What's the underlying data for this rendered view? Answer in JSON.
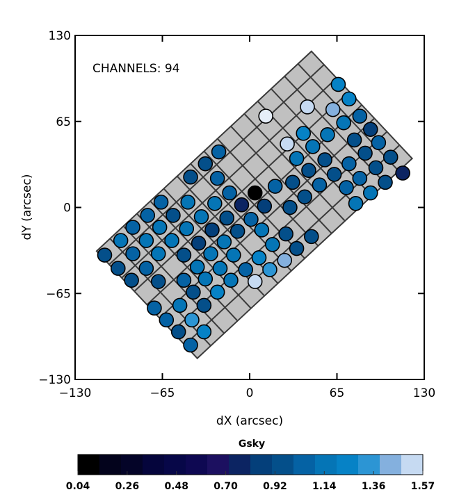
{
  "chart_data": {
    "type": "scatter",
    "annotation": "CHANNELS: 94",
    "xlabel": "dX (arcsec)",
    "ylabel": "dY (arcsec)",
    "xlim": [
      -130,
      130
    ],
    "ylim": [
      -130,
      130
    ],
    "xticks": [
      "-130",
      "-65",
      "0",
      "65",
      "130"
    ],
    "yticks": [
      "-130",
      "-65",
      "0",
      "65",
      "130"
    ],
    "xtick_values": [
      -130,
      -65,
      0,
      65,
      130
    ],
    "ytick_values": [
      -130,
      -65,
      0,
      65,
      130
    ],
    "footprint": {
      "corners": [
        [
          46,
          118
        ],
        [
          121,
          37
        ],
        [
          -39,
          -114
        ],
        [
          -114,
          -33
        ]
      ],
      "cells_long": 16,
      "cells_short": 8,
      "fill": "#c0c0c0",
      "line": "#3a3a3a"
    },
    "colorbar": {
      "title": "Gsky",
      "range": [
        0.04,
        1.57
      ],
      "tick_labels": [
        "0.04",
        "0.26",
        "0.48",
        "0.70",
        "0.92",
        "1.14",
        "1.36",
        "1.57"
      ],
      "colors": [
        "#000000",
        "#03031c",
        "#040428",
        "#05053c",
        "#070748",
        "#0e0852",
        "#1c1060",
        "#0c2462",
        "#043f7a",
        "#044f8a",
        "#0562a4",
        "#0575b6",
        "#0682c6",
        "#2c95d4",
        "#84b0de",
        "#c6daf2"
      ]
    },
    "points": [
      {
        "x": 66,
        "y": 93,
        "v": 1.23
      },
      {
        "x": 74,
        "y": 82,
        "v": 1.23
      },
      {
        "x": 43,
        "y": 76,
        "v": 1.52
      },
      {
        "x": 62,
        "y": 74,
        "v": 1.42
      },
      {
        "x": 12,
        "y": 69,
        "v": 1.57
      },
      {
        "x": 82,
        "y": 69,
        "v": 1.04
      },
      {
        "x": 70,
        "y": 64,
        "v": 1.14
      },
      {
        "x": 90,
        "y": 59,
        "v": 0.85
      },
      {
        "x": 40,
        "y": 56,
        "v": 1.23
      },
      {
        "x": 58,
        "y": 55,
        "v": 1.14
      },
      {
        "x": 78,
        "y": 51,
        "v": 0.95
      },
      {
        "x": 28,
        "y": 48,
        "v": 1.52
      },
      {
        "x": 47,
        "y": 46,
        "v": 1.14
      },
      {
        "x": 96,
        "y": 49,
        "v": 1.04
      },
      {
        "x": -23,
        "y": 42,
        "v": 1.04
      },
      {
        "x": 86,
        "y": 41,
        "v": 0.95
      },
      {
        "x": 35,
        "y": 37,
        "v": 1.14
      },
      {
        "x": 56,
        "y": 36,
        "v": 0.95
      },
      {
        "x": 105,
        "y": 38,
        "v": 0.95
      },
      {
        "x": -33,
        "y": 33,
        "v": 0.95
      },
      {
        "x": 74,
        "y": 33,
        "v": 1.04
      },
      {
        "x": 44,
        "y": 28,
        "v": 0.95
      },
      {
        "x": 63,
        "y": 25,
        "v": 0.95
      },
      {
        "x": 94,
        "y": 30,
        "v": 0.95
      },
      {
        "x": 114,
        "y": 26,
        "v": 0.76
      },
      {
        "x": -44,
        "y": 23,
        "v": 0.95
      },
      {
        "x": -24,
        "y": 22,
        "v": 1.04
      },
      {
        "x": 82,
        "y": 22,
        "v": 1.04
      },
      {
        "x": 32,
        "y": 19,
        "v": 0.95
      },
      {
        "x": 19,
        "y": 16,
        "v": 1.04
      },
      {
        "x": 52,
        "y": 17,
        "v": 1.04
      },
      {
        "x": -15,
        "y": 11,
        "v": 1.04
      },
      {
        "x": 4,
        "y": 11,
        "v": 0.04
      },
      {
        "x": 101,
        "y": 19,
        "v": 0.95
      },
      {
        "x": 72,
        "y": 15,
        "v": 1.04
      },
      {
        "x": 90,
        "y": 11,
        "v": 1.14
      },
      {
        "x": 41,
        "y": 8,
        "v": 0.95
      },
      {
        "x": -66,
        "y": 4,
        "v": 1.04
      },
      {
        "x": -46,
        "y": 4,
        "v": 1.14
      },
      {
        "x": -26,
        "y": 3,
        "v": 1.14
      },
      {
        "x": -6,
        "y": 2,
        "v": 0.76
      },
      {
        "x": 11,
        "y": 1,
        "v": 0.85
      },
      {
        "x": 30,
        "y": 0,
        "v": 0.95
      },
      {
        "x": 79,
        "y": 3,
        "v": 1.14
      },
      {
        "x": -76,
        "y": -6,
        "v": 1.04
      },
      {
        "x": -57,
        "y": -6,
        "v": 0.95
      },
      {
        "x": -36,
        "y": -7,
        "v": 1.14
      },
      {
        "x": -17,
        "y": -8,
        "v": 0.95
      },
      {
        "x": 1,
        "y": -9,
        "v": 1.04
      },
      {
        "x": -87,
        "y": -15,
        "v": 1.04
      },
      {
        "x": -67,
        "y": -15,
        "v": 1.14
      },
      {
        "x": -47,
        "y": -16,
        "v": 1.14
      },
      {
        "x": -28,
        "y": -17,
        "v": 0.85
      },
      {
        "x": -9,
        "y": -18,
        "v": 0.95
      },
      {
        "x": 9,
        "y": -17,
        "v": 1.14
      },
      {
        "x": 27,
        "y": -20,
        "v": 0.95
      },
      {
        "x": 46,
        "y": -22,
        "v": 0.95
      },
      {
        "x": -96,
        "y": -25,
        "v": 1.14
      },
      {
        "x": -77,
        "y": -25,
        "v": 1.14
      },
      {
        "x": -58,
        "y": -25,
        "v": 1.14
      },
      {
        "x": -38,
        "y": -27,
        "v": 0.85
      },
      {
        "x": -19,
        "y": -26,
        "v": 1.14
      },
      {
        "x": 17,
        "y": -28,
        "v": 1.14
      },
      {
        "x": -108,
        "y": -36,
        "v": 0.95
      },
      {
        "x": -87,
        "y": -35,
        "v": 1.04
      },
      {
        "x": -68,
        "y": -35,
        "v": 1.14
      },
      {
        "x": -49,
        "y": -36,
        "v": 0.95
      },
      {
        "x": -29,
        "y": -35,
        "v": 1.14
      },
      {
        "x": -12,
        "y": -36,
        "v": 1.14
      },
      {
        "x": 7,
        "y": -38,
        "v": 1.23
      },
      {
        "x": 35,
        "y": -31,
        "v": 0.95
      },
      {
        "x": 26,
        "y": -40,
        "v": 1.42
      },
      {
        "x": -98,
        "y": -46,
        "v": 0.95
      },
      {
        "x": -77,
        "y": -46,
        "v": 1.04
      },
      {
        "x": -39,
        "y": -45,
        "v": 1.14
      },
      {
        "x": -22,
        "y": -46,
        "v": 1.14
      },
      {
        "x": -3,
        "y": -47,
        "v": 1.04
      },
      {
        "x": 15,
        "y": -47,
        "v": 1.33
      },
      {
        "x": -88,
        "y": -55,
        "v": 0.95
      },
      {
        "x": -68,
        "y": -56,
        "v": 0.95
      },
      {
        "x": -49,
        "y": -55,
        "v": 1.04
      },
      {
        "x": -33,
        "y": -54,
        "v": 1.14
      },
      {
        "x": -14,
        "y": -55,
        "v": 1.14
      },
      {
        "x": 4,
        "y": -56,
        "v": 1.52
      },
      {
        "x": -42,
        "y": -64,
        "v": 0.95
      },
      {
        "x": -24,
        "y": -64,
        "v": 1.23
      },
      {
        "x": -71,
        "y": -76,
        "v": 1.04
      },
      {
        "x": -52,
        "y": -74,
        "v": 1.14
      },
      {
        "x": -34,
        "y": -74,
        "v": 0.95
      },
      {
        "x": -62,
        "y": -85,
        "v": 1.04
      },
      {
        "x": -43,
        "y": -85,
        "v": 1.33
      },
      {
        "x": -53,
        "y": -94,
        "v": 0.95
      },
      {
        "x": -34,
        "y": -94,
        "v": 1.23
      },
      {
        "x": -44,
        "y": -104,
        "v": 1.04
      }
    ]
  }
}
